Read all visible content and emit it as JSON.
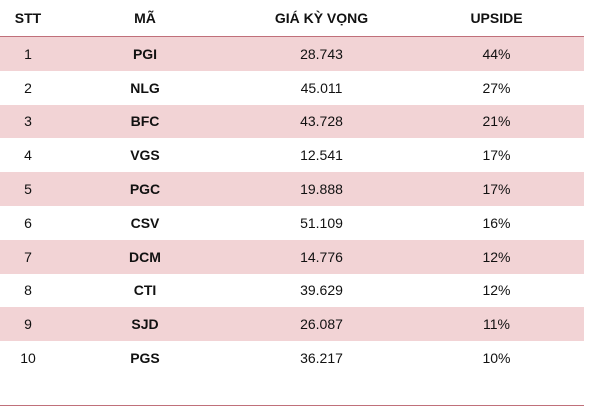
{
  "table": {
    "header": [
      "STT",
      "MÃ",
      "GIÁ KỲ VỌNG",
      "UPSIDE"
    ],
    "rows": [
      [
        "1",
        "PGI",
        "28.743",
        "44%"
      ],
      [
        "2",
        "NLG",
        "45.011",
        "27%"
      ],
      [
        "3",
        "BFC",
        "43.728",
        "21%"
      ],
      [
        "4",
        "VGS",
        "12.541",
        "17%"
      ],
      [
        "5",
        "PGC",
        "19.888",
        "17%"
      ],
      [
        "6",
        "CSV",
        "51.109",
        "16%"
      ],
      [
        "7",
        "DCM",
        "14.776",
        "12%"
      ],
      [
        "8",
        "CTI",
        "39.629",
        "12%"
      ],
      [
        "9",
        "SJD",
        "26.087",
        "11%"
      ],
      [
        "10",
        "PGS",
        "36.217",
        "10%"
      ]
    ]
  }
}
